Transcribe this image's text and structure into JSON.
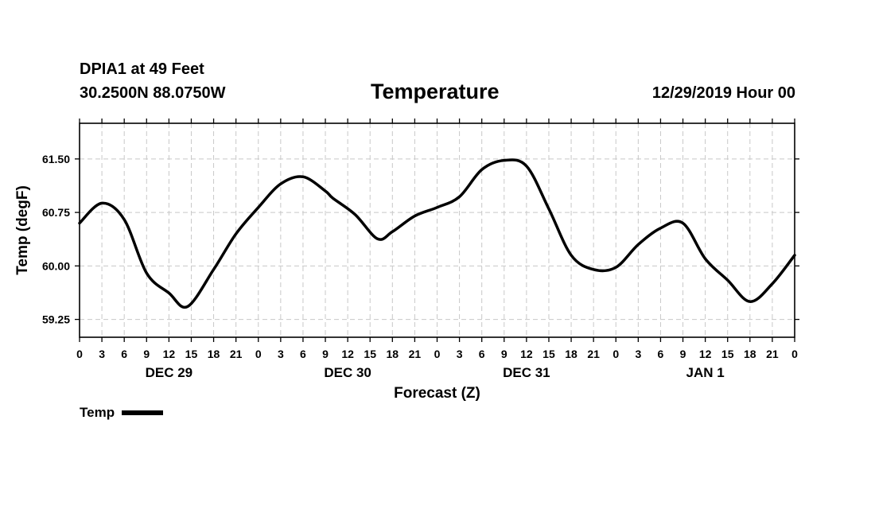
{
  "header": {
    "station": "DPIA1 at 49 Feet",
    "coords": "30.2500N 88.0750W",
    "title": "Temperature",
    "run": "12/29/2019 Hour 00"
  },
  "legend": {
    "label": "Temp",
    "color": "#000000"
  },
  "chart_data": {
    "type": "line",
    "title": "Temperature",
    "xlabel": "Forecast (Z)",
    "ylabel": "Temp (degF)",
    "ylim": [
      59.0,
      62.0
    ],
    "yticks": [
      59.25,
      60.0,
      60.75,
      61.5
    ],
    "ytick_labels": [
      "59.25",
      "60.00",
      "60.75",
      "61.50"
    ],
    "xlim": [
      0,
      96
    ],
    "xticks": [
      0,
      3,
      6,
      9,
      12,
      15,
      18,
      21,
      24,
      27,
      30,
      33,
      36,
      39,
      42,
      45,
      48,
      51,
      54,
      57,
      60,
      63,
      66,
      69,
      72,
      75,
      78,
      81,
      84,
      87,
      90,
      93,
      96
    ],
    "xtick_labels": [
      "0",
      "3",
      "6",
      "9",
      "12",
      "15",
      "18",
      "21",
      "0",
      "3",
      "6",
      "9",
      "12",
      "15",
      "18",
      "21",
      "0",
      "3",
      "6",
      "9",
      "12",
      "15",
      "18",
      "21",
      "0",
      "3",
      "6",
      "9",
      "12",
      "15",
      "18",
      "21",
      "0"
    ],
    "day_labels": [
      {
        "hour": 12,
        "label": "DEC 29"
      },
      {
        "hour": 36,
        "label": "DEC 30"
      },
      {
        "hour": 60,
        "label": "DEC 31"
      },
      {
        "hour": 84,
        "label": "JAN 1"
      }
    ],
    "grid": true,
    "series": [
      {
        "name": "Temp",
        "color": "#000000",
        "x": [
          0,
          3,
          6,
          9,
          12,
          14.5,
          18,
          21,
          24,
          27,
          30,
          33,
          34,
          37,
          40,
          42,
          45,
          48,
          51,
          54,
          57,
          60,
          63,
          66,
          69,
          72,
          75,
          78,
          81,
          84,
          87,
          90,
          93,
          96
        ],
        "y": [
          60.6,
          60.88,
          60.65,
          59.9,
          59.62,
          59.43,
          59.95,
          60.45,
          60.82,
          61.15,
          61.25,
          61.05,
          60.95,
          60.72,
          60.38,
          60.48,
          60.7,
          60.82,
          60.97,
          61.35,
          61.48,
          61.4,
          60.8,
          60.15,
          59.95,
          59.98,
          60.3,
          60.53,
          60.6,
          60.1,
          59.8,
          59.5,
          59.75,
          60.15
        ]
      }
    ]
  }
}
